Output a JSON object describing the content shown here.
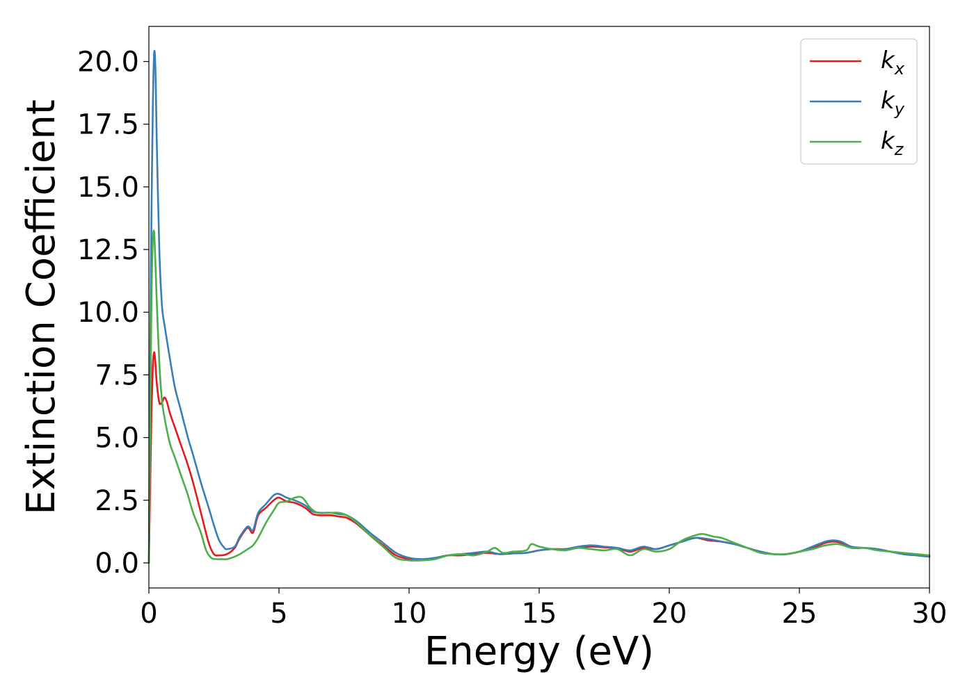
{
  "chart_data": {
    "type": "line",
    "xlabel": "Energy (eV)",
    "ylabel": "Extinction Coefficient",
    "xlim": [
      0,
      30
    ],
    "ylim": [
      -1.0,
      21.4
    ],
    "xticks": [
      0,
      5,
      10,
      15,
      20,
      25,
      30
    ],
    "yticks": [
      0.0,
      2.5,
      5.0,
      7.5,
      10.0,
      12.5,
      15.0,
      17.5,
      20.0
    ],
    "legend_position": "top-right",
    "grid": false,
    "series": [
      {
        "name": "k",
        "subscript": "x",
        "color": "#e41a1c",
        "x": [
          0,
          0.05,
          0.1,
          0.15,
          0.2,
          0.25,
          0.3,
          0.4,
          0.5,
          0.6,
          0.7,
          0.8,
          1.0,
          1.2,
          1.5,
          1.7,
          2.0,
          2.3,
          2.5,
          2.7,
          3.0,
          3.3,
          3.5,
          3.8,
          4.0,
          4.2,
          4.5,
          4.8,
          5.0,
          5.3,
          5.6,
          6.0,
          6.3,
          6.6,
          7.0,
          7.3,
          7.6,
          8.0,
          8.5,
          9.0,
          9.5,
          10.0,
          10.5,
          11.0,
          11.5,
          12.0,
          12.5,
          13.0,
          13.5,
          14.0,
          14.5,
          15.0,
          15.5,
          16.0,
          16.5,
          17.0,
          17.5,
          18.0,
          18.5,
          19.0,
          19.5,
          20.0,
          20.5,
          21.0,
          21.5,
          22.0,
          22.5,
          23.0,
          23.5,
          24.0,
          24.5,
          25.0,
          25.5,
          26.0,
          26.3,
          26.6,
          27.0,
          27.5,
          28.0,
          28.5,
          29.0,
          29.5,
          30.0
        ],
        "y": [
          0.0,
          3.0,
          6.0,
          7.8,
          8.4,
          8.0,
          7.2,
          6.4,
          6.4,
          6.6,
          6.4,
          6.0,
          5.4,
          4.8,
          3.9,
          3.2,
          2.0,
          0.8,
          0.35,
          0.3,
          0.35,
          0.6,
          1.0,
          1.4,
          1.2,
          1.9,
          2.2,
          2.5,
          2.6,
          2.45,
          2.4,
          2.2,
          1.95,
          1.9,
          1.9,
          1.85,
          1.8,
          1.55,
          1.1,
          0.7,
          0.3,
          0.15,
          0.12,
          0.2,
          0.3,
          0.3,
          0.35,
          0.4,
          0.35,
          0.38,
          0.4,
          0.5,
          0.55,
          0.55,
          0.6,
          0.65,
          0.62,
          0.58,
          0.45,
          0.6,
          0.55,
          0.7,
          0.85,
          1.0,
          0.9,
          0.85,
          0.75,
          0.6,
          0.45,
          0.35,
          0.35,
          0.45,
          0.6,
          0.8,
          0.85,
          0.8,
          0.6,
          0.6,
          0.55,
          0.45,
          0.35,
          0.3,
          0.25
        ]
      },
      {
        "name": "k",
        "subscript": "y",
        "color": "#377eb8",
        "x": [
          0,
          0.05,
          0.1,
          0.15,
          0.2,
          0.25,
          0.3,
          0.4,
          0.5,
          0.6,
          0.8,
          1.0,
          1.2,
          1.5,
          1.7,
          2.0,
          2.3,
          2.5,
          2.7,
          2.9,
          3.0,
          3.3,
          3.5,
          3.8,
          4.0,
          4.2,
          4.5,
          4.8,
          5.0,
          5.3,
          5.6,
          6.0,
          6.3,
          6.6,
          7.0,
          7.3,
          7.6,
          8.0,
          8.5,
          9.0,
          9.5,
          10.0,
          10.5,
          11.0,
          11.5,
          12.0,
          12.5,
          13.0,
          13.5,
          14.0,
          14.5,
          15.0,
          15.5,
          16.0,
          16.5,
          17.0,
          17.5,
          18.0,
          18.5,
          19.0,
          19.5,
          20.0,
          20.5,
          21.0,
          21.5,
          22.0,
          22.5,
          23.0,
          23.5,
          24.0,
          24.5,
          25.0,
          25.5,
          26.0,
          26.3,
          26.6,
          27.0,
          27.5,
          28.0,
          28.5,
          29.0,
          29.5,
          30.0
        ],
        "y": [
          0.0,
          8.0,
          14.0,
          18.0,
          20.3,
          19.8,
          17.0,
          12.5,
          10.3,
          9.5,
          8.2,
          7.0,
          6.2,
          5.0,
          4.3,
          3.2,
          2.2,
          1.5,
          0.9,
          0.6,
          0.55,
          0.65,
          1.05,
          1.45,
          1.3,
          2.0,
          2.35,
          2.7,
          2.75,
          2.6,
          2.5,
          2.3,
          2.05,
          2.0,
          2.0,
          1.95,
          1.9,
          1.65,
          1.2,
          0.8,
          0.4,
          0.2,
          0.15,
          0.2,
          0.3,
          0.35,
          0.4,
          0.45,
          0.35,
          0.38,
          0.4,
          0.5,
          0.55,
          0.55,
          0.65,
          0.7,
          0.65,
          0.6,
          0.5,
          0.65,
          0.55,
          0.7,
          0.85,
          1.0,
          0.95,
          0.85,
          0.75,
          0.6,
          0.45,
          0.35,
          0.35,
          0.45,
          0.65,
          0.85,
          0.9,
          0.85,
          0.65,
          0.6,
          0.55,
          0.45,
          0.35,
          0.3,
          0.25
        ]
      },
      {
        "name": "k",
        "subscript": "z",
        "color": "#4daf4a",
        "x": [
          0,
          0.05,
          0.1,
          0.15,
          0.2,
          0.25,
          0.3,
          0.4,
          0.5,
          0.6,
          0.8,
          1.0,
          1.2,
          1.5,
          1.7,
          2.0,
          2.2,
          2.4,
          2.6,
          2.8,
          3.0,
          3.3,
          3.5,
          3.8,
          4.0,
          4.2,
          4.5,
          4.8,
          5.0,
          5.3,
          5.6,
          5.9,
          6.2,
          6.5,
          7.0,
          7.3,
          7.6,
          8.0,
          8.5,
          9.0,
          9.5,
          10.0,
          10.5,
          11.0,
          11.5,
          12.0,
          12.5,
          13.0,
          13.3,
          13.6,
          14.0,
          14.5,
          14.7,
          15.0,
          15.5,
          16.0,
          16.5,
          17.0,
          17.5,
          18.0,
          18.5,
          19.0,
          19.5,
          20.0,
          20.5,
          21.0,
          21.3,
          21.7,
          22.0,
          22.5,
          23.0,
          23.5,
          24.0,
          24.5,
          25.0,
          25.5,
          26.0,
          26.5,
          27.0,
          27.5,
          28.0,
          28.5,
          29.0,
          29.5,
          30.0
        ],
        "y": [
          0.0,
          5.5,
          10.5,
          12.8,
          13.2,
          12.0,
          10.5,
          8.0,
          6.5,
          5.8,
          4.8,
          4.2,
          3.6,
          2.7,
          2.0,
          1.2,
          0.5,
          0.2,
          0.15,
          0.15,
          0.15,
          0.25,
          0.35,
          0.55,
          0.7,
          1.0,
          1.6,
          2.1,
          2.4,
          2.45,
          2.6,
          2.6,
          2.2,
          2.0,
          2.0,
          2.0,
          1.9,
          1.6,
          1.1,
          0.65,
          0.2,
          0.1,
          0.1,
          0.15,
          0.3,
          0.35,
          0.3,
          0.45,
          0.6,
          0.4,
          0.45,
          0.5,
          0.75,
          0.65,
          0.55,
          0.5,
          0.6,
          0.55,
          0.5,
          0.55,
          0.3,
          0.55,
          0.45,
          0.55,
          0.9,
          1.1,
          1.15,
          1.05,
          1.0,
          0.8,
          0.6,
          0.4,
          0.35,
          0.35,
          0.45,
          0.55,
          0.7,
          0.75,
          0.6,
          0.6,
          0.5,
          0.45,
          0.4,
          0.35,
          0.3
        ]
      }
    ]
  }
}
